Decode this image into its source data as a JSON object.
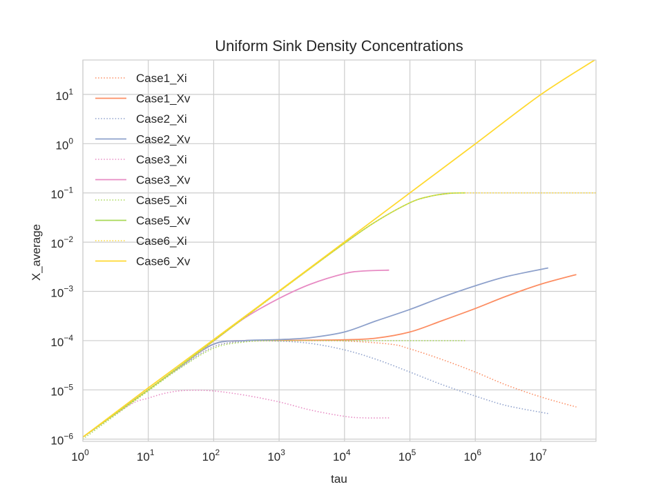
{
  "chart_data": {
    "type": "line",
    "title": "Uniform Sink Density Concentrations",
    "xlabel": "tau",
    "ylabel": "X_average",
    "xscale": "log",
    "yscale": "log",
    "xlim": [
      1,
      70000000
    ],
    "ylim": [
      9e-07,
      50
    ],
    "x_ticks": [
      {
        "value": 1,
        "base": "10",
        "exp": "0"
      },
      {
        "value": 10,
        "base": "10",
        "exp": "1"
      },
      {
        "value": 100,
        "base": "10",
        "exp": "2"
      },
      {
        "value": 1000,
        "base": "10",
        "exp": "3"
      },
      {
        "value": 10000,
        "base": "10",
        "exp": "4"
      },
      {
        "value": 100000,
        "base": "10",
        "exp": "5"
      },
      {
        "value": 1000000,
        "base": "10",
        "exp": "6"
      },
      {
        "value": 10000000,
        "base": "10",
        "exp": "7"
      }
    ],
    "y_ticks": [
      {
        "value": 1e-06,
        "base": "10",
        "exp": "−6"
      },
      {
        "value": 1e-05,
        "base": "10",
        "exp": "−5"
      },
      {
        "value": 0.0001,
        "base": "10",
        "exp": "−4"
      },
      {
        "value": 0.001,
        "base": "10",
        "exp": "−3"
      },
      {
        "value": 0.01,
        "base": "10",
        "exp": "−2"
      },
      {
        "value": 0.1,
        "base": "10",
        "exp": "−1"
      },
      {
        "value": 1,
        "base": "10",
        "exp": "0"
      },
      {
        "value": 10,
        "base": "10",
        "exp": "1"
      }
    ],
    "grid": true,
    "legend_position": "top-left",
    "series": [
      {
        "name": "Case1_Xi",
        "color": "#fc8d62",
        "dash": "dotted",
        "x": [
          1,
          10,
          30,
          100,
          300,
          1000,
          3000,
          10000,
          50000,
          100000,
          300000,
          1000000,
          3000000,
          10000000,
          35000000
        ],
        "y": [
          1.1e-06,
          1e-05,
          2.8e-05,
          7.5e-05,
          9.7e-05,
          0.0001,
          0.0001,
          9.85e-05,
          8.5e-05,
          6.8e-05,
          4.2e-05,
          2.3e-05,
          1.25e-05,
          7.2e-06,
          4.5e-06
        ]
      },
      {
        "name": "Case1_Xv",
        "color": "#fc8d62",
        "dash": "solid",
        "x": [
          1,
          10,
          30,
          100,
          300,
          1000,
          3000,
          10000,
          30000,
          100000,
          300000,
          1000000,
          3000000,
          10000000,
          35000000
        ],
        "y": [
          1.1e-06,
          1e-05,
          2.9e-05,
          8.5e-05,
          0.0001,
          0.000101,
          0.000102,
          0.000104,
          0.000112,
          0.00015,
          0.00025,
          0.00045,
          0.0008,
          0.0014,
          0.0022
        ]
      },
      {
        "name": "Case2_Xi",
        "color": "#8da0cb",
        "dash": "dotted",
        "x": [
          1,
          10,
          30,
          100,
          300,
          1000,
          3000,
          10000,
          30000,
          100000,
          300000,
          1000000,
          3000000,
          13000000
        ],
        "y": [
          1.1e-06,
          1e-05,
          2.8e-05,
          7.5e-05,
          9.7e-05,
          9.75e-05,
          8.8e-05,
          6.5e-05,
          4.2e-05,
          2.3e-05,
          1.3e-05,
          7.5e-06,
          4.8e-06,
          3.3e-06
        ]
      },
      {
        "name": "Case2_Xv",
        "color": "#8da0cb",
        "dash": "solid",
        "x": [
          1,
          10,
          30,
          100,
          300,
          1000,
          3000,
          10000,
          30000,
          100000,
          300000,
          1000000,
          3000000,
          13000000
        ],
        "y": [
          1.1e-06,
          1e-05,
          2.9e-05,
          8.5e-05,
          0.0001,
          0.000105,
          0.000115,
          0.00015,
          0.00025,
          0.00043,
          0.00075,
          0.0013,
          0.002,
          0.003
        ]
      },
      {
        "name": "Case3_Xi",
        "color": "#e78ac3",
        "dash": "dotted",
        "x": [
          1,
          5,
          10,
          20,
          40,
          100,
          300,
          1000,
          3000,
          10000,
          20000,
          48000
        ],
        "y": [
          1.1e-06,
          4.8e-06,
          6.8e-06,
          8.8e-06,
          9.8e-06,
          9.5e-06,
          7.8e-06,
          5.7e-06,
          3.9e-06,
          2.9e-06,
          2.7e-06,
          2.7e-06
        ]
      },
      {
        "name": "Case3_Xv",
        "color": "#e78ac3",
        "dash": "solid",
        "x": [
          1,
          10,
          100,
          300,
          1000,
          3000,
          10000,
          20000,
          48000
        ],
        "y": [
          1.1e-06,
          1e-05,
          9.85e-05,
          0.00029,
          0.00072,
          0.0014,
          0.0023,
          0.0026,
          0.0027
        ]
      },
      {
        "name": "Case5_Xi",
        "color": "#a6d854",
        "dash": "dotted",
        "x": [
          1,
          10,
          30,
          100,
          300,
          1000,
          10000,
          100000,
          700000
        ],
        "y": [
          1e-06,
          9.5e-06,
          2.7e-05,
          7e-05,
          9.4e-05,
          0.0001,
          0.0001,
          0.0001,
          0.0001
        ]
      },
      {
        "name": "Case5_Xv",
        "color": "#a6d854",
        "dash": "solid",
        "x": [
          1,
          10,
          100,
          1000,
          10000,
          30000,
          100000,
          200000,
          400000,
          700000
        ],
        "y": [
          1.1e-06,
          1e-05,
          0.0001,
          0.001,
          0.0095,
          0.026,
          0.063,
          0.085,
          0.098,
          0.1
        ]
      },
      {
        "name": "Case6_Xi",
        "color": "#ffd92f",
        "dash": "dotted",
        "x": [
          1,
          10,
          100,
          1000,
          10000,
          30000,
          100000,
          200000,
          400000,
          700000,
          1000000,
          10000000,
          70000000
        ],
        "y": [
          1.1e-06,
          1e-05,
          9.85e-05,
          0.00098,
          0.0095,
          0.026,
          0.063,
          0.085,
          0.098,
          0.1,
          0.1,
          0.1,
          0.1
        ]
      },
      {
        "name": "Case6_Xv",
        "color": "#ffd92f",
        "dash": "solid",
        "x": [
          1,
          10,
          100,
          1000,
          10000,
          100000,
          1000000,
          10000000,
          70000000
        ],
        "y": [
          1.1e-06,
          1.1e-05,
          0.000105,
          0.00102,
          0.0101,
          0.1,
          0.99,
          9.9,
          52
        ]
      }
    ]
  }
}
